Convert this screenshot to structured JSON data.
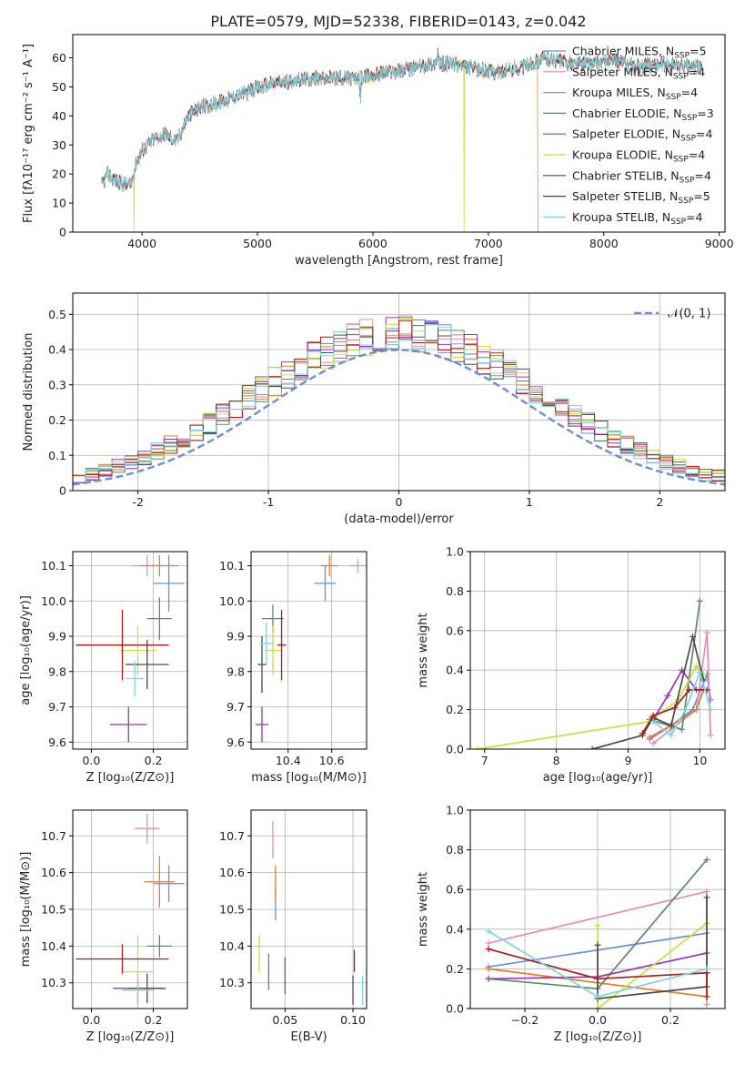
{
  "figure_title": "PLATE=0579, MJD=52338, FIBERID=0143, z=0.042",
  "colors": {
    "Chabrier MILES": "#6a8fd8",
    "Salpeter MILES": "#e88bb8",
    "Kroupa MILES": "#e57c2a",
    "Chabrier ELODIE": "#5b8a6b",
    "Salpeter ELODIE": "#9a36b6",
    "Kroupa ELODIE": "#c9df3c",
    "Chabrier STELIB": "#4a4a4a",
    "Salpeter STELIB": "#aa1b1b",
    "Kroupa STELIB": "#7fd3e0"
  },
  "chart_data": [
    {
      "id": "spectrum",
      "type": "line",
      "xlabel": "wavelength [Angstrom, rest frame]",
      "ylabel": "Flux [fλ10⁻¹⁷ erg cm⁻² s⁻¹ A⁻¹]",
      "xlim": [
        3400,
        9050
      ],
      "ylim": [
        0,
        68
      ],
      "xticks": [
        4000,
        5000,
        6000,
        7000,
        8000,
        9000
      ],
      "yticks": [
        0,
        10,
        20,
        30,
        40,
        50,
        60
      ],
      "legend_position": "top-right",
      "series": [
        {
          "name": "Chabrier MILES, N_SSP=5",
          "label": "Chabrier MILES, N",
          "sub": "SSP",
          "suffix": "=5"
        },
        {
          "name": "Salpeter MILES, N_SSP=4",
          "label": "Salpeter MILES, N",
          "sub": "SSP",
          "suffix": "=4"
        },
        {
          "name": "Kroupa MILES, N_SSP=4",
          "label": "Kroupa MILES, N",
          "sub": "SSP",
          "suffix": "=4"
        },
        {
          "name": "Chabrier ELODIE, N_SSP=3",
          "label": "Chabrier ELODIE, N",
          "sub": "SSP",
          "suffix": "=3"
        },
        {
          "name": "Salpeter ELODIE, N_SSP=4",
          "label": "Salpeter ELODIE, N",
          "sub": "SSP",
          "suffix": "=4"
        },
        {
          "name": "Kroupa ELODIE, N_SSP=4",
          "label": "Kroupa ELODIE, N",
          "sub": "SSP",
          "suffix": "=4"
        },
        {
          "name": "Chabrier STELIB, N_SSP=4",
          "label": "Chabrier STELIB, N",
          "sub": "SSP",
          "suffix": "=4"
        },
        {
          "name": "Salpeter STELIB, N_SSP=5",
          "label": "Salpeter STELIB, N",
          "sub": "SSP",
          "suffix": "=5"
        },
        {
          "name": "Kroupa STELIB, N_SSP=4",
          "label": "Kroupa STELIB, N",
          "sub": "SSP",
          "suffix": "=4"
        }
      ],
      "continuum": {
        "x": [
          3650,
          3700,
          3800,
          3900,
          3950,
          4000,
          4100,
          4200,
          4300,
          4400,
          4500,
          4700,
          4900,
          5100,
          5300,
          5500,
          5700,
          5900,
          6100,
          6300,
          6500,
          6700,
          6900,
          7100,
          7300,
          7500,
          7700,
          7900,
          8100,
          8300,
          8500,
          8700,
          8850
        ],
        "y": [
          16,
          20,
          17,
          16,
          24,
          28,
          32,
          34,
          31,
          40,
          43,
          45,
          48,
          51,
          52,
          53,
          53,
          53,
          55,
          56,
          58,
          58,
          56,
          55,
          57,
          60,
          58,
          58,
          59,
          57,
          58,
          57,
          57
        ]
      },
      "dropouts": [
        {
          "x": 3930,
          "series": "Kroupa ELODIE"
        },
        {
          "x": 6790,
          "series": "Kroupa ELODIE"
        },
        {
          "x": 7430,
          "series": "Kroupa MILES"
        }
      ]
    },
    {
      "id": "residual_hist",
      "type": "line",
      "xlabel": "(data-model)/error",
      "ylabel": "Normed distribution",
      "xlim": [
        -2.5,
        2.5
      ],
      "ylim": [
        0,
        0.56
      ],
      "xticks": [
        -2,
        -1,
        0,
        1,
        2
      ],
      "yticks": [
        0.0,
        0.1,
        0.2,
        0.3,
        0.4,
        0.5
      ],
      "reference": {
        "name": "N(0,1)",
        "label": "𝒩(0, 1)",
        "mean": 0,
        "sigma": 1
      },
      "bin_width": 0.1,
      "series": [
        {
          "name": "Chabrier MILES",
          "jitter_seed": 1
        },
        {
          "name": "Salpeter MILES",
          "jitter_seed": 2
        },
        {
          "name": "Kroupa MILES",
          "jitter_seed": 3
        },
        {
          "name": "Chabrier ELODIE",
          "jitter_seed": 4
        },
        {
          "name": "Salpeter ELODIE",
          "jitter_seed": 5
        },
        {
          "name": "Kroupa ELODIE",
          "jitter_seed": 6
        },
        {
          "name": "Chabrier STELIB",
          "jitter_seed": 7
        },
        {
          "name": "Salpeter STELIB",
          "jitter_seed": 8
        },
        {
          "name": "Kroupa STELIB",
          "jitter_seed": 9
        }
      ]
    },
    {
      "id": "age_vs_Z",
      "type": "scatter",
      "xlabel": "Z [log₁₀(Z/Z⊙)]",
      "ylabel": "age  [log₁₀(age/yr)]",
      "xlim": [
        -0.06,
        0.31
      ],
      "ylim": [
        9.58,
        10.14
      ],
      "xticks": [
        {
          "v": 0.0,
          "t": "0.0"
        },
        {
          "v": 0.2,
          "t": "0.2"
        }
      ],
      "yticks": [
        {
          "v": 9.6,
          "t": "9.6"
        },
        {
          "v": 9.7,
          "t": "9.7"
        },
        {
          "v": 9.8,
          "t": "9.8"
        },
        {
          "v": 9.9,
          "t": "9.9"
        },
        {
          "v": 10.0,
          "t": "10.0"
        },
        {
          "v": 10.1,
          "t": "10.1"
        }
      ],
      "points": [
        {
          "s": "Chabrier MILES",
          "x": 0.25,
          "y": 10.05,
          "xerr": 0.05,
          "yerr": 0.08
        },
        {
          "s": "Salpeter MILES",
          "x": 0.18,
          "y": 10.1,
          "xerr": 0.05,
          "yerr": 0.03
        },
        {
          "s": "Kroupa MILES",
          "x": 0.22,
          "y": 10.1,
          "xerr": 0.06,
          "yerr": 0.03
        },
        {
          "s": "Chabrier ELODIE",
          "x": 0.22,
          "y": 9.95,
          "xerr": 0.04,
          "yerr": 0.06
        },
        {
          "s": "Salpeter ELODIE",
          "x": 0.12,
          "y": 9.65,
          "xerr": 0.06,
          "yerr": 0.05
        },
        {
          "s": "Kroupa ELODIE",
          "x": 0.15,
          "y": 9.86,
          "xerr": 0.06,
          "yerr": 0.07
        },
        {
          "s": "Chabrier STELIB",
          "x": 0.18,
          "y": 9.82,
          "xerr": 0.07,
          "yerr": 0.07
        },
        {
          "s": "Salpeter STELIB",
          "x": 0.1,
          "y": 9.875,
          "xerr": 0.15,
          "yerr": 0.1
        },
        {
          "s": "Kroupa STELIB",
          "x": 0.14,
          "y": 9.78,
          "xerr": 0.03,
          "yerr": 0.05
        }
      ]
    },
    {
      "id": "age_vs_mass",
      "type": "scatter",
      "xlabel": "mass [log₁₀(M/M⊙)]",
      "ylabel": "",
      "xlim": [
        10.23,
        10.76
      ],
      "ylim": [
        9.58,
        10.14
      ],
      "xticks": [
        {
          "v": 10.4,
          "t": "10.4"
        },
        {
          "v": 10.6,
          "t": "10.6"
        }
      ],
      "yticks": [
        {
          "v": 9.6,
          "t": "9.6"
        },
        {
          "v": 9.7,
          "t": "9.7"
        },
        {
          "v": 9.8,
          "t": "9.8"
        },
        {
          "v": 9.9,
          "t": "9.9"
        },
        {
          "v": 10.0,
          "t": "10.0"
        },
        {
          "v": 10.1,
          "t": "10.1"
        }
      ],
      "points": [
        {
          "s": "Chabrier MILES",
          "x": 10.57,
          "y": 10.05,
          "xerr": 0.05,
          "yerr": 0.05
        },
        {
          "s": "Salpeter MILES",
          "x": 10.72,
          "y": 10.1,
          "xerr": 0.04,
          "yerr": 0.02
        },
        {
          "s": "Kroupa MILES",
          "x": 10.59,
          "y": 10.1,
          "xerr": 0.04,
          "yerr": 0.03
        },
        {
          "s": "Chabrier ELODIE",
          "x": 10.33,
          "y": 9.95,
          "xerr": 0.05,
          "yerr": 0.04
        },
        {
          "s": "Salpeter ELODIE",
          "x": 10.28,
          "y": 9.65,
          "xerr": 0.03,
          "yerr": 0.05
        },
        {
          "s": "Kroupa ELODIE",
          "x": 10.33,
          "y": 9.86,
          "xerr": 0.04,
          "yerr": 0.07
        },
        {
          "s": "Chabrier STELIB",
          "x": 10.28,
          "y": 9.82,
          "xerr": 0.02,
          "yerr": 0.08
        },
        {
          "s": "Salpeter STELIB",
          "x": 10.37,
          "y": 9.875,
          "xerr": 0.02,
          "yerr": 0.1
        },
        {
          "s": "Kroupa STELIB",
          "x": 10.3,
          "y": 9.88,
          "xerr": 0.03,
          "yerr": 0.06
        }
      ]
    },
    {
      "id": "sfh_age",
      "type": "line",
      "xlabel": "age  [log₁₀(age/yr)]",
      "ylabel": "mass weight",
      "xlim": [
        6.8,
        10.35
      ],
      "ylim": [
        0,
        1.0
      ],
      "xticks": [
        {
          "v": 7,
          "t": "7"
        },
        {
          "v": 8,
          "t": "8"
        },
        {
          "v": 9,
          "t": "9"
        },
        {
          "v": 10,
          "t": "10"
        }
      ],
      "yticks": [
        {
          "v": 0.0,
          "t": "0.0"
        },
        {
          "v": 0.2,
          "t": "0.2"
        },
        {
          "v": 0.4,
          "t": "0.4"
        },
        {
          "v": 0.6,
          "t": "0.6"
        },
        {
          "v": 0.8,
          "t": "0.8"
        },
        {
          "v": 1.0,
          "t": "1.0"
        }
      ],
      "series": [
        {
          "name": "Chabrier MILES",
          "x": [
            9.3,
            9.6,
            9.9,
            10.1,
            10.15
          ],
          "y": [
            0.05,
            0.12,
            0.2,
            0.38,
            0.25
          ]
        },
        {
          "name": "Salpeter MILES",
          "x": [
            9.35,
            9.6,
            9.95,
            10.1,
            10.15
          ],
          "y": [
            0.03,
            0.1,
            0.2,
            0.59,
            0.07
          ]
        },
        {
          "name": "Kroupa MILES",
          "x": [
            9.3,
            9.6,
            9.95,
            10.05
          ],
          "y": [
            0.06,
            0.12,
            0.2,
            0.3
          ]
        },
        {
          "name": "Chabrier ELODIE",
          "x": [
            9.3,
            9.75,
            10.0
          ],
          "y": [
            0.15,
            0.1,
            0.75
          ]
        },
        {
          "name": "Salpeter ELODIE",
          "x": [
            9.35,
            9.55,
            9.75,
            9.95
          ],
          "y": [
            0.15,
            0.27,
            0.4,
            0.3
          ]
        },
        {
          "name": "Kroupa ELODIE",
          "x": [
            6.9,
            9.3,
            9.7,
            9.95,
            10.05
          ],
          "y": [
            0.0,
            0.14,
            0.25,
            0.42,
            0.38
          ]
        },
        {
          "name": "Chabrier STELIB",
          "x": [
            8.5,
            9.2,
            9.35,
            9.6,
            9.9,
            10.05
          ],
          "y": [
            0.0,
            0.07,
            0.16,
            0.12,
            0.57,
            0.35
          ]
        },
        {
          "name": "Salpeter STELIB",
          "x": [
            9.2,
            9.35,
            9.65,
            9.85,
            10.1
          ],
          "y": [
            0.08,
            0.17,
            0.21,
            0.3,
            0.3
          ]
        },
        {
          "name": "Kroupa STELIB",
          "x": [
            9.35,
            9.6,
            9.8,
            10.0,
            10.15
          ],
          "y": [
            0.14,
            0.07,
            0.2,
            0.39,
            0.2
          ]
        }
      ]
    },
    {
      "id": "mass_vs_Z",
      "type": "scatter",
      "xlabel": "Z [log₁₀(Z/Z⊙)]",
      "ylabel": "mass [log₁₀(M/M⊙)]",
      "xlim": [
        -0.06,
        0.31
      ],
      "ylim": [
        10.23,
        10.77
      ],
      "xticks": [
        {
          "v": 0.0,
          "t": "0.0"
        },
        {
          "v": 0.2,
          "t": "0.2"
        }
      ],
      "yticks": [
        {
          "v": 10.3,
          "t": "10.3"
        },
        {
          "v": 10.4,
          "t": "10.4"
        },
        {
          "v": 10.5,
          "t": "10.5"
        },
        {
          "v": 10.6,
          "t": "10.6"
        },
        {
          "v": 10.7,
          "t": "10.7"
        }
      ],
      "points": [
        {
          "s": "Chabrier MILES",
          "x": 0.25,
          "y": 10.57,
          "xerr": 0.05,
          "yerr": 0.05
        },
        {
          "s": "Salpeter MILES",
          "x": 0.18,
          "y": 10.72,
          "xerr": 0.04,
          "yerr": 0.04
        },
        {
          "s": "Kroupa MILES",
          "x": 0.22,
          "y": 10.575,
          "xerr": 0.05,
          "yerr": 0.07
        },
        {
          "s": "Chabrier ELODIE",
          "x": 0.22,
          "y": 10.4,
          "xerr": 0.04,
          "yerr": 0.03
        },
        {
          "s": "Salpeter ELODIE",
          "x": 0.15,
          "y": 10.285,
          "xerr": 0.08,
          "yerr": 0.04
        },
        {
          "s": "Kroupa ELODIE",
          "x": 0.15,
          "y": 10.33,
          "xerr": 0.05,
          "yerr": 0.1
        },
        {
          "s": "Chabrier STELIB",
          "x": 0.18,
          "y": 10.285,
          "xerr": 0.06,
          "yerr": 0.04
        },
        {
          "s": "Salpeter STELIB",
          "x": 0.1,
          "y": 10.365,
          "xerr": 0.15,
          "yerr": 0.04
        },
        {
          "s": "Kroupa STELIB",
          "x": 0.15,
          "y": 10.28,
          "xerr": 0.05,
          "yerr": 0.03
        }
      ]
    },
    {
      "id": "mass_vs_ebv",
      "type": "scatter",
      "xlabel": "E(B-V)",
      "ylabel": "",
      "xlim": [
        0.025,
        0.11
      ],
      "ylim": [
        10.23,
        10.77
      ],
      "xticks": [
        {
          "v": 0.05,
          "t": "0.05"
        },
        {
          "v": 0.1,
          "t": "0.10"
        }
      ],
      "yticks": [
        {
          "v": 10.3,
          "t": "10.3"
        },
        {
          "v": 10.4,
          "t": "10.4"
        },
        {
          "v": 10.5,
          "t": "10.5"
        },
        {
          "v": 10.6,
          "t": "10.6"
        },
        {
          "v": 10.7,
          "t": "10.7"
        }
      ],
      "points": [
        {
          "s": "Chabrier MILES",
          "x": 0.043,
          "y": 10.52,
          "xerr": 0.0,
          "yerr": 0.05
        },
        {
          "s": "Salpeter MILES",
          "x": 0.041,
          "y": 10.69,
          "xerr": 0.0,
          "yerr": 0.05
        },
        {
          "s": "Kroupa MILES",
          "x": 0.043,
          "y": 10.57,
          "xerr": 0.0,
          "yerr": 0.05
        },
        {
          "s": "Chabrier ELODIE",
          "x": 0.038,
          "y": 10.33,
          "xerr": 0.0,
          "yerr": 0.05
        },
        {
          "s": "Salpeter ELODIE",
          "x": 0.05,
          "y": 10.32,
          "xerr": 0.0,
          "yerr": 0.05
        },
        {
          "s": "Kroupa ELODIE",
          "x": 0.031,
          "y": 10.38,
          "xerr": 0.0,
          "yerr": 0.05
        },
        {
          "s": "Chabrier STELIB",
          "x": 0.1,
          "y": 10.28,
          "xerr": 0.0,
          "yerr": 0.04
        },
        {
          "s": "Salpeter STELIB",
          "x": 0.101,
          "y": 10.36,
          "xerr": 0.0,
          "yerr": 0.03
        },
        {
          "s": "Kroupa STELIB",
          "x": 0.107,
          "y": 10.28,
          "xerr": 0.0,
          "yerr": 0.04
        }
      ]
    },
    {
      "id": "sfh_Z",
      "type": "line",
      "xlabel": "Z [log₁₀(Z/Z⊙)]",
      "ylabel": "mass weight",
      "xlim": [
        -0.35,
        0.35
      ],
      "ylim": [
        0,
        1.0
      ],
      "xticks": [
        {
          "v": -0.2,
          "t": "−0.2"
        },
        {
          "v": 0.0,
          "t": "0.0"
        },
        {
          "v": 0.2,
          "t": "0.2"
        }
      ],
      "yticks": [
        {
          "v": 0.0,
          "t": "0.0"
        },
        {
          "v": 0.2,
          "t": "0.2"
        },
        {
          "v": 0.4,
          "t": "0.4"
        },
        {
          "v": 0.6,
          "t": "0.6"
        },
        {
          "v": 0.8,
          "t": "0.8"
        },
        {
          "v": 1.0,
          "t": "1.0"
        }
      ],
      "series": [
        {
          "name": "Chabrier MILES",
          "x": [
            -0.3,
            0.3
          ],
          "y": [
            0.21,
            0.38
          ]
        },
        {
          "name": "Salpeter MILES",
          "x": [
            -0.3,
            0.3,
            0.3
          ],
          "y": [
            0.33,
            0.59,
            0.02
          ]
        },
        {
          "name": "Kroupa MILES",
          "x": [
            -0.3,
            0.0,
            0.3
          ],
          "y": [
            0.2,
            0.13,
            0.06
          ]
        },
        {
          "name": "Chabrier ELODIE",
          "x": [
            -0.3,
            0.0,
            0.3
          ],
          "y": [
            0.15,
            0.1,
            0.75
          ]
        },
        {
          "name": "Salpeter ELODIE",
          "x": [
            -0.3,
            0.0,
            0.3
          ],
          "y": [
            0.15,
            0.16,
            0.28
          ]
        },
        {
          "name": "Kroupa ELODIE",
          "x": [
            0.0,
            0.0,
            0.3
          ],
          "y": [
            0.42,
            0.0,
            0.43
          ]
        },
        {
          "name": "Chabrier STELIB",
          "x": [
            0.0,
            0.0,
            0.3,
            0.3
          ],
          "y": [
            0.32,
            0.05,
            0.11,
            0.56
          ]
        },
        {
          "name": "Salpeter STELIB",
          "x": [
            -0.3,
            0.0,
            0.3,
            0.3
          ],
          "y": [
            0.3,
            0.15,
            0.18,
            0.06
          ]
        },
        {
          "name": "Kroupa STELIB",
          "x": [
            -0.3,
            0.0,
            0.3
          ],
          "y": [
            0.39,
            0.06,
            0.2
          ]
        }
      ]
    }
  ]
}
